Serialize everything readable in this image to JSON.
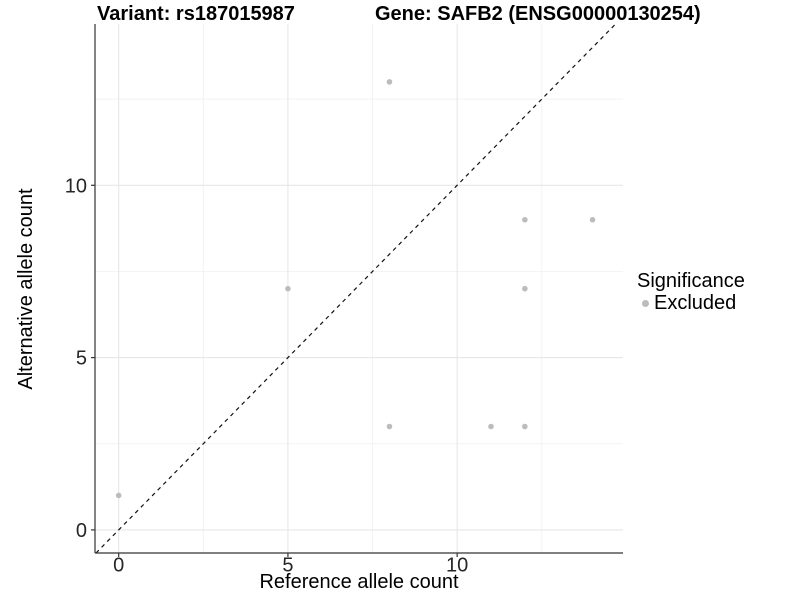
{
  "chart_data": {
    "type": "scatter",
    "title_left": "Variant: rs187015987",
    "title_right": "Gene: SAFB2 (ENSG00000130254)",
    "xlabel": "Reference allele count",
    "ylabel": "Alternative allele count",
    "xlim": [
      -0.7,
      14.9
    ],
    "ylim": [
      -0.67,
      14.68
    ],
    "x_ticks": [
      {
        "value": 0,
        "label": "0"
      },
      {
        "value": 5,
        "label": "5"
      },
      {
        "value": 10,
        "label": "10"
      }
    ],
    "y_ticks": [
      {
        "value": 0,
        "label": "0"
      },
      {
        "value": 5,
        "label": "5"
      },
      {
        "value": 10,
        "label": "10"
      }
    ],
    "x_minor_ticks": [
      2.5,
      7.5,
      12.5
    ],
    "y_minor_ticks": [
      2.5,
      7.5,
      12.5
    ],
    "grid": "major and minor, very light gray, white panel background",
    "identity_line": {
      "slope": 1,
      "intercept": 0,
      "style": "dashed",
      "color": "#111111"
    },
    "series": [
      {
        "name": "Excluded",
        "color": "#bcbcbc",
        "marker": "circle",
        "points": [
          [
            0,
            1
          ],
          [
            5,
            7
          ],
          [
            8,
            3
          ],
          [
            8,
            13
          ],
          [
            11,
            3
          ],
          [
            12,
            3
          ],
          [
            12,
            7
          ],
          [
            12,
            9
          ],
          [
            14,
            9
          ]
        ]
      }
    ],
    "legend": {
      "title": "Significance",
      "position": "right",
      "items": [
        {
          "label": "Excluded",
          "color": "#bcbcbc",
          "marker": "circle"
        }
      ]
    },
    "colors": {
      "background": "#ffffff",
      "point": "#bcbcbc",
      "grid_major": "#e7e7e7",
      "grid_minor": "#f2f2f2",
      "axis_line": "#333333",
      "tick_label": "#262626",
      "title_text": "#000000"
    }
  }
}
